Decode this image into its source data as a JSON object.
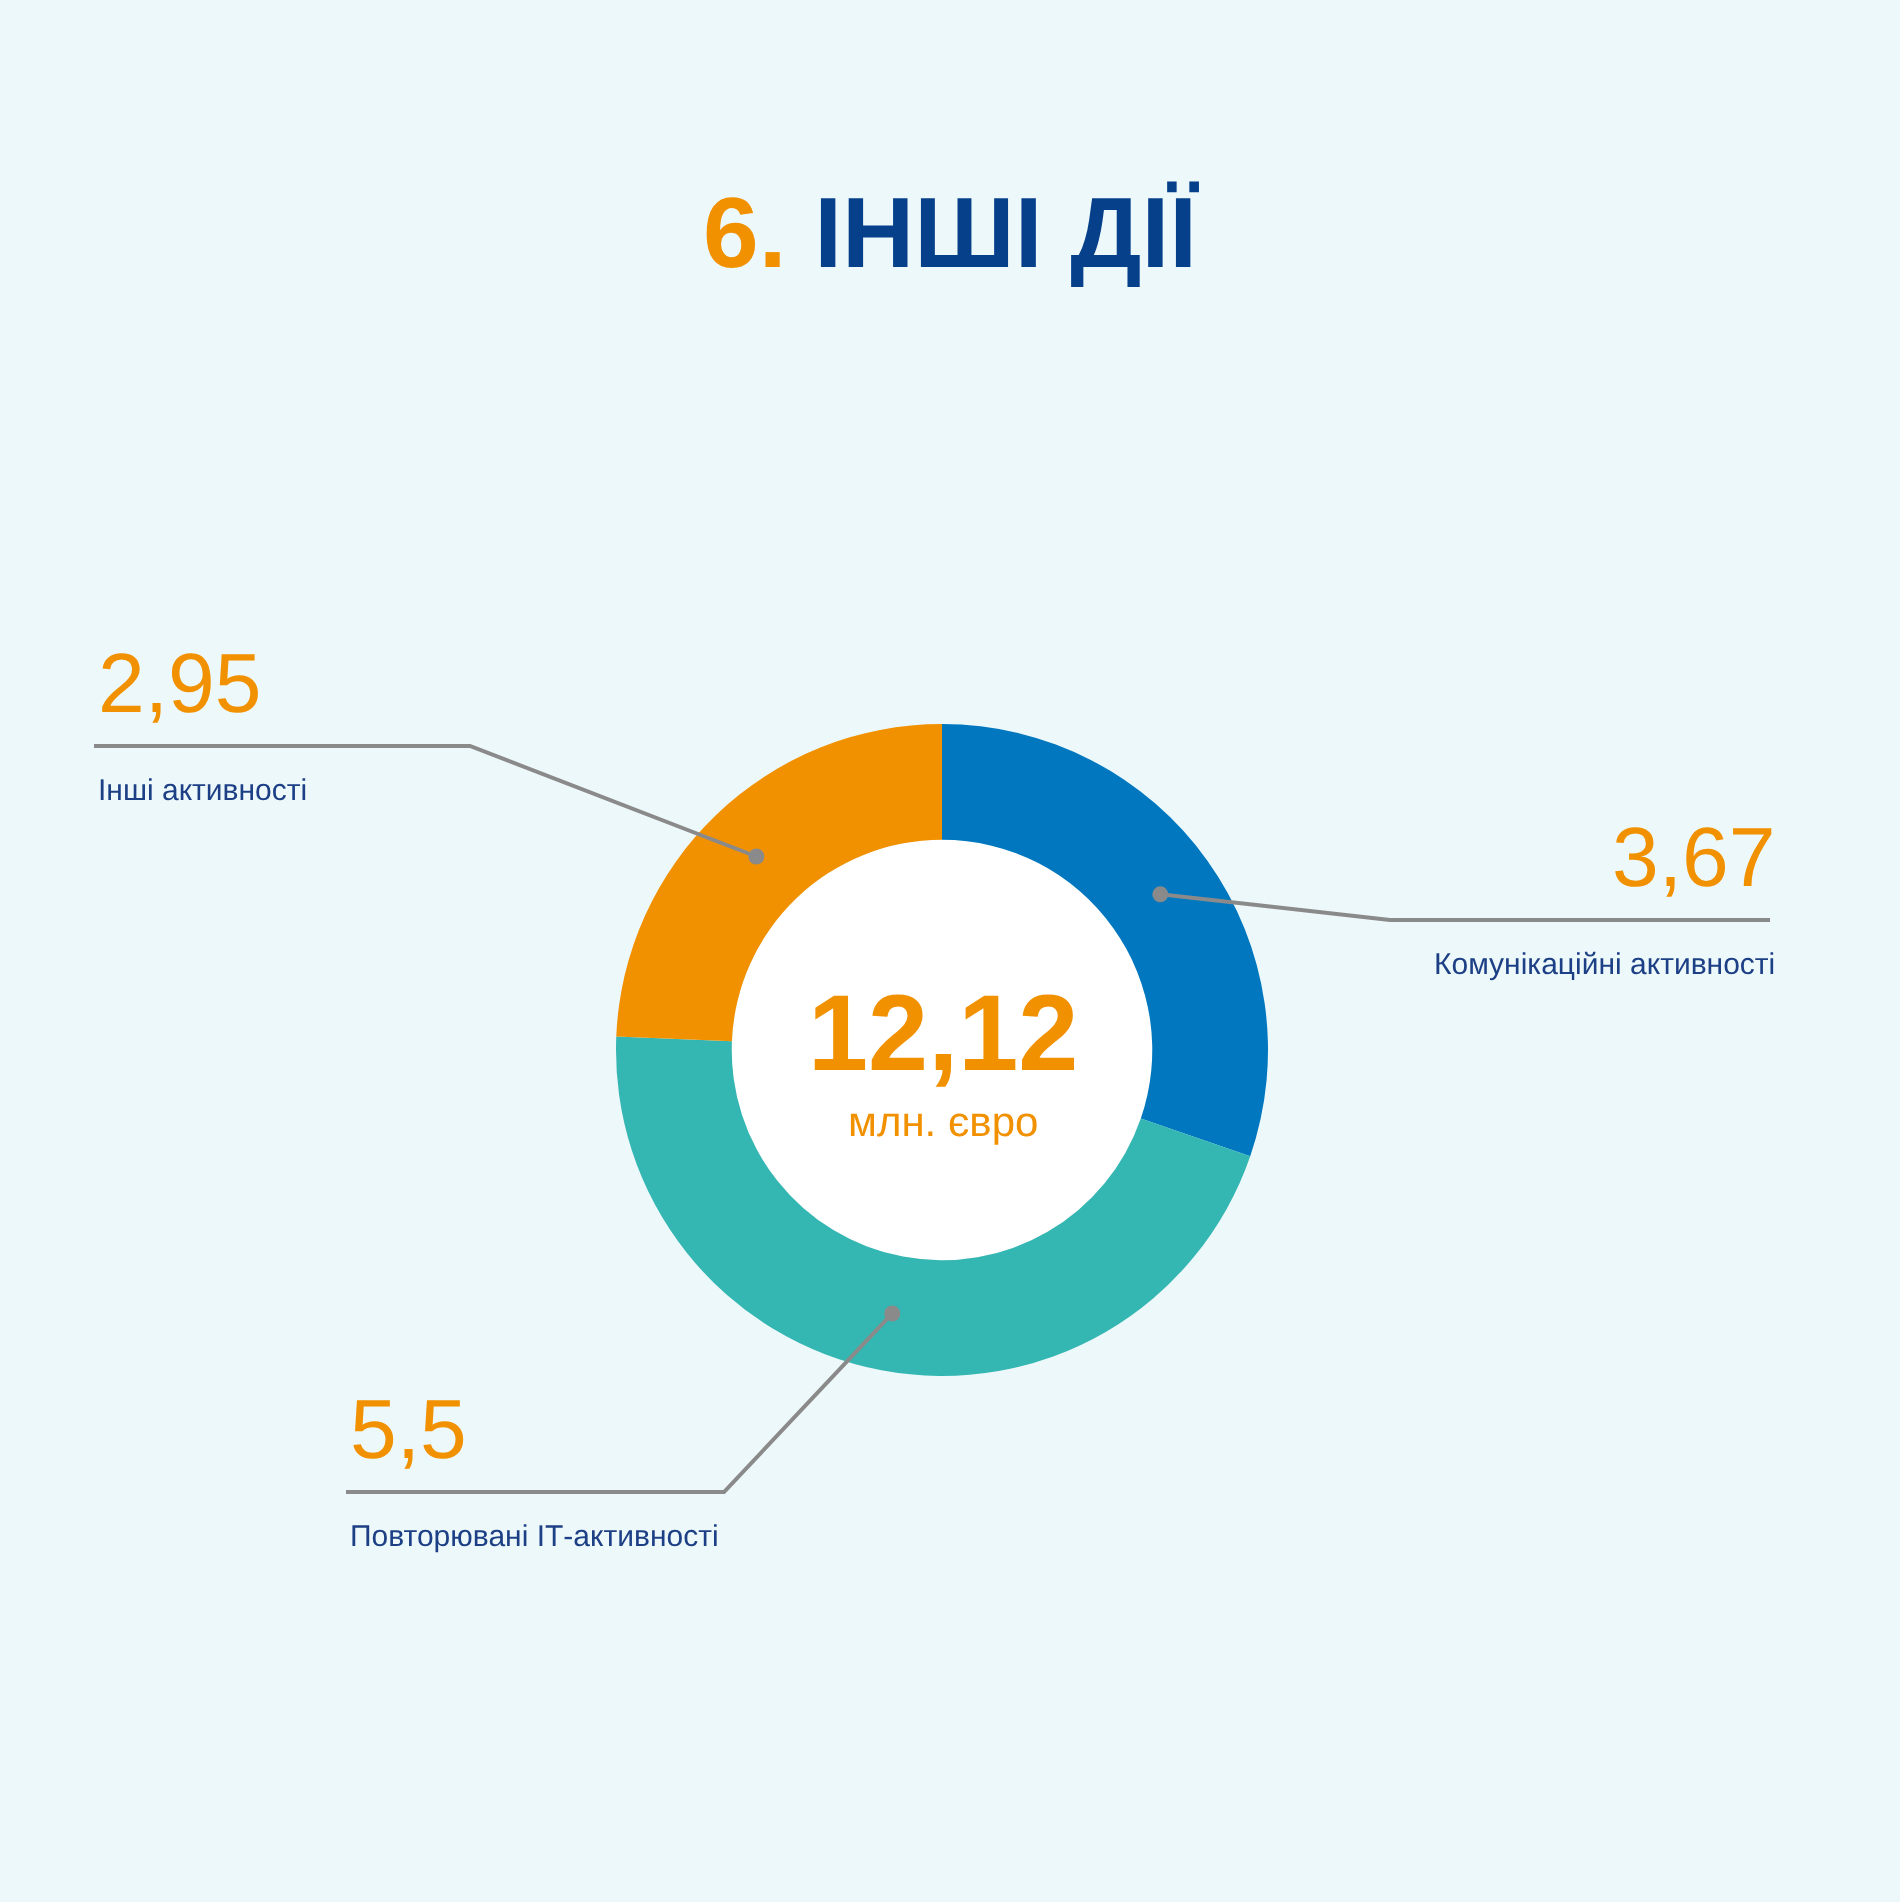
{
  "chart_data": {
    "type": "donut",
    "title": "6. ІНШІ ДІЇ",
    "categories": [
      "Комунікаційні активності",
      "Повторювані ІТ-активності",
      "Інші активності"
    ],
    "values": [
      3.67,
      5.5,
      2.95
    ],
    "value_labels": [
      "3,67",
      "5,5",
      "2,95"
    ],
    "colors": [
      "#0077bf",
      "#34b6b2",
      "#f29100"
    ],
    "annotations": [
      "12,12",
      "млн. євро"
    ],
    "legend": false
  }
}
